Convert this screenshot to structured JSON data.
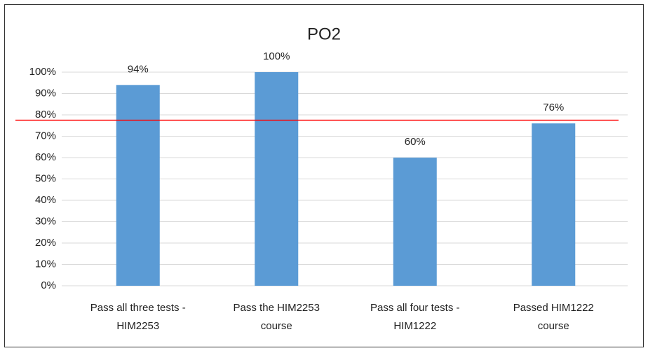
{
  "chart_data": {
    "type": "bar",
    "title": "PO2",
    "categories": [
      [
        "Pass all three tests -",
        "HIM2253"
      ],
      [
        "Pass the HIM2253",
        "course"
      ],
      [
        "Pass all four tests -",
        "HIM1222"
      ],
      [
        "Passed HIM1222",
        "course"
      ]
    ],
    "values": [
      94,
      100,
      60,
      76
    ],
    "value_labels": [
      "94%",
      "100%",
      "60%",
      "76%"
    ],
    "color": "#5b9bd5",
    "ylim": [
      0,
      100
    ],
    "yticks": [
      {
        "value": 0,
        "label": "0%"
      },
      {
        "value": 10,
        "label": "10%"
      },
      {
        "value": 20,
        "label": "20%"
      },
      {
        "value": 30,
        "label": "30%"
      },
      {
        "value": 40,
        "label": "40%"
      },
      {
        "value": 50,
        "label": "50%"
      },
      {
        "value": 60,
        "label": "60%"
      },
      {
        "value": 70,
        "label": "70%"
      },
      {
        "value": 80,
        "label": "80%"
      },
      {
        "value": 90,
        "label": "90%"
      },
      {
        "value": 100,
        "label": "100%"
      }
    ],
    "grid": true,
    "reference_line": {
      "value": 77.5,
      "color": "#ff0000"
    }
  }
}
